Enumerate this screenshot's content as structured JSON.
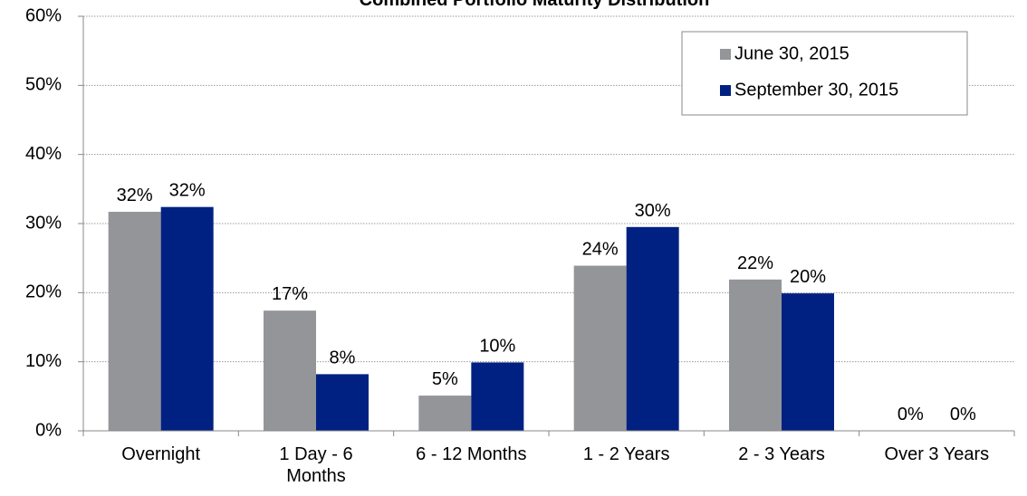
{
  "chart_data": {
    "type": "bar",
    "title": "Combined Portfolio Maturity Distribution",
    "categories": [
      "Overnight",
      "1 Day - 6 Months",
      "6 - 12 Months",
      "1 - 2 Years",
      "2 - 3 Years",
      "Over 3 Years"
    ],
    "series": [
      {
        "name": "June 30, 2015",
        "color": "#939598",
        "values": [
          31.7,
          17.4,
          5.1,
          23.9,
          21.9,
          0
        ],
        "value_labels": [
          "32%",
          "17%",
          "5%",
          "24%",
          "22%",
          "0%"
        ]
      },
      {
        "name": "September 30, 2015",
        "color": "#002182",
        "values": [
          32.4,
          8.2,
          9.9,
          29.5,
          19.9,
          0
        ],
        "value_labels": [
          "32%",
          "8%",
          "10%",
          "30%",
          "20%",
          "0%"
        ]
      }
    ],
    "ylim": [
      0,
      60
    ],
    "yticks": [
      {
        "value": 0,
        "label": "0%"
      },
      {
        "value": 10,
        "label": "10%"
      },
      {
        "value": 20,
        "label": "20%"
      },
      {
        "value": 30,
        "label": "30%"
      },
      {
        "value": 40,
        "label": "40%"
      },
      {
        "value": 50,
        "label": "50%"
      },
      {
        "value": 60,
        "label": "60%"
      }
    ],
    "grid": true,
    "legend": "upper right"
  }
}
